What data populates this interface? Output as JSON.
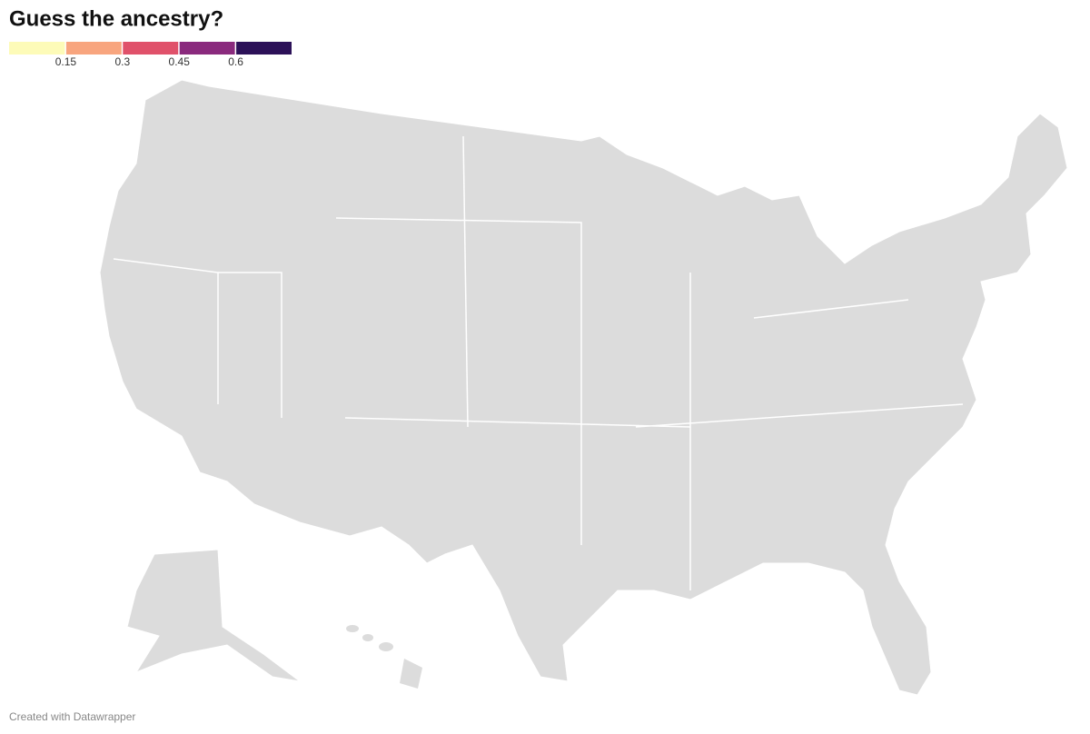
{
  "title": "Guess the ancestry?",
  "legend": {
    "colors": [
      "#fdfbb8",
      "#f8a57e",
      "#e0516a",
      "#8a2a7d",
      "#2c1158"
    ],
    "ticks": [
      0.15,
      0.3,
      0.45,
      0.6
    ]
  },
  "footer": "Created with Datawrapper"
}
